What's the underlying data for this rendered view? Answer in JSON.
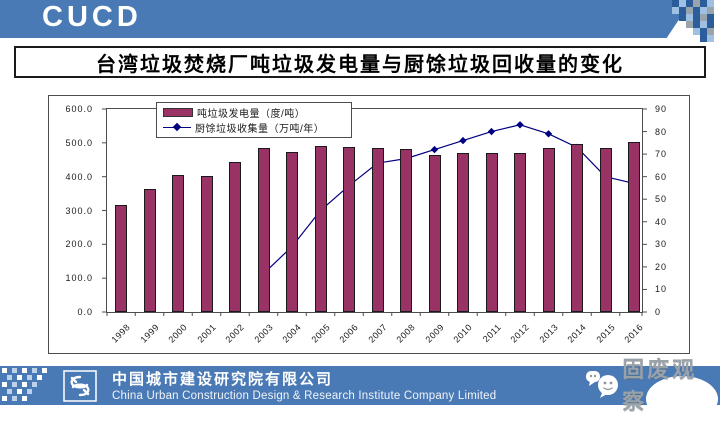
{
  "header": {
    "logo_text": "CUCD"
  },
  "title": "台湾垃圾焚烧厂吨垃圾发电量与厨馀垃圾回收量的变化",
  "chart_data": {
    "type": "bar",
    "title": "",
    "categories": [
      "1998",
      "1999",
      "2000",
      "2001",
      "2002",
      "2003",
      "2004",
      "2005",
      "2006",
      "2007",
      "2008",
      "2009",
      "2010",
      "2011",
      "2012",
      "2013",
      "2014",
      "2015",
      "2016"
    ],
    "series": [
      {
        "name": "吨垃圾发电量（度/吨）",
        "type": "bar",
        "axis": "left",
        "color": "#993366",
        "values": [
          315,
          365,
          405,
          403,
          443,
          485,
          472,
          492,
          488,
          485,
          482,
          465,
          471,
          471,
          469,
          485,
          497,
          485,
          503
        ]
      },
      {
        "name": "厨馀垃圾收集量（万吨/年）",
        "type": "line",
        "axis": "right",
        "color": "#000080",
        "values": [
          null,
          null,
          null,
          null,
          null,
          17,
          29,
          45,
          56,
          66,
          68,
          72,
          76,
          80,
          83,
          79,
          73,
          60,
          57
        ]
      }
    ],
    "left_axis": {
      "min": 0,
      "max": 600,
      "ticks": [
        "600.0",
        "500.0",
        "400.0",
        "300.0",
        "200.0",
        "100.0",
        "0.0"
      ]
    },
    "right_axis": {
      "min": 0,
      "max": 90,
      "ticks": [
        "90",
        "80",
        "70",
        "60",
        "50",
        "40",
        "30",
        "20",
        "10",
        "0"
      ]
    },
    "legend_position": "top",
    "grid": "off",
    "xlabel": "",
    "ylabel": ""
  },
  "footer": {
    "company_cn": "中国城市建设研究院有限公司",
    "company_en": "China Urban Construction Design & Research Institute Company Limited"
  },
  "watermark": {
    "icon": "wechat-icon",
    "text": "固废观察"
  },
  "colors": {
    "band_blue": "#4a7ab5",
    "bar_fill": "#993366",
    "line_stroke": "#000080",
    "watermark_text": "#99a1a9"
  }
}
